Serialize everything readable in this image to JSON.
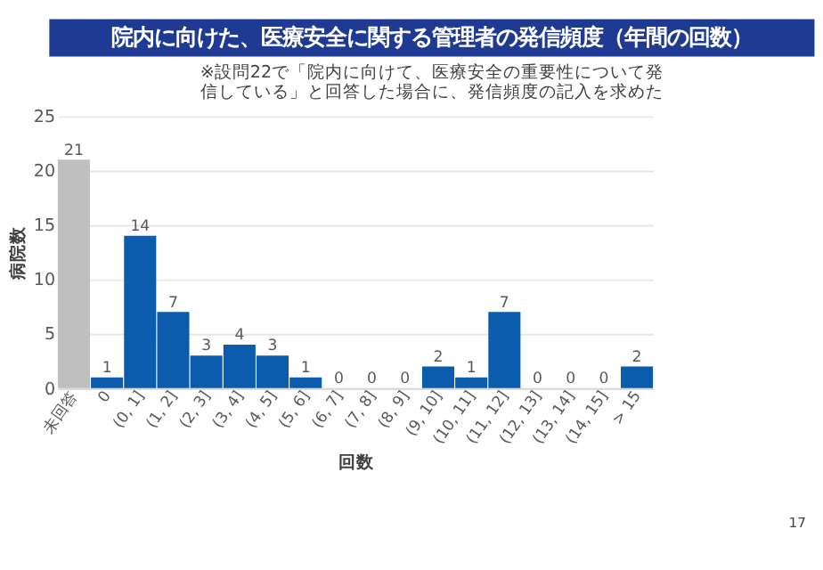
{
  "chart_data": {
    "type": "bar",
    "title": "院内に向けた、医療安全に関する管理者の発信頻度（年間の回数）",
    "subtitle": "※設問22で「院内に向けて、医療安全の重要性について発信している」と回答した場合に、発信頻度の記入を求めた",
    "xlabel": "回数",
    "ylabel": "病院数",
    "categories": [
      "未回答",
      "0",
      "(0, 1]",
      "(1, 2]",
      "(2, 3]",
      "(3, 4]",
      "(4, 5]",
      "(5, 6]",
      "(6, 7]",
      "(7, 8]",
      "(8, 9]",
      "(9, 10]",
      "(10, 11]",
      "(11, 12]",
      "(12, 13]",
      "(13, 14]",
      "(14, 15]",
      "> 15"
    ],
    "values": [
      21,
      1,
      14,
      7,
      3,
      4,
      3,
      1,
      0,
      0,
      0,
      2,
      1,
      7,
      0,
      0,
      0,
      2
    ],
    "colors": [
      "#bfbfbf",
      "#0b5cad",
      "#0b5cad",
      "#0b5cad",
      "#0b5cad",
      "#0b5cad",
      "#0b5cad",
      "#0b5cad",
      "#0b5cad",
      "#0b5cad",
      "#0b5cad",
      "#0b5cad",
      "#0b5cad",
      "#0b5cad",
      "#0b5cad",
      "#0b5cad",
      "#0b5cad",
      "#0b5cad"
    ],
    "ylim": [
      0,
      25
    ],
    "yticks": [
      0,
      5,
      10,
      15,
      20,
      25
    ],
    "grid": "y",
    "data_labels": true,
    "annotations": [
      "17"
    ]
  }
}
